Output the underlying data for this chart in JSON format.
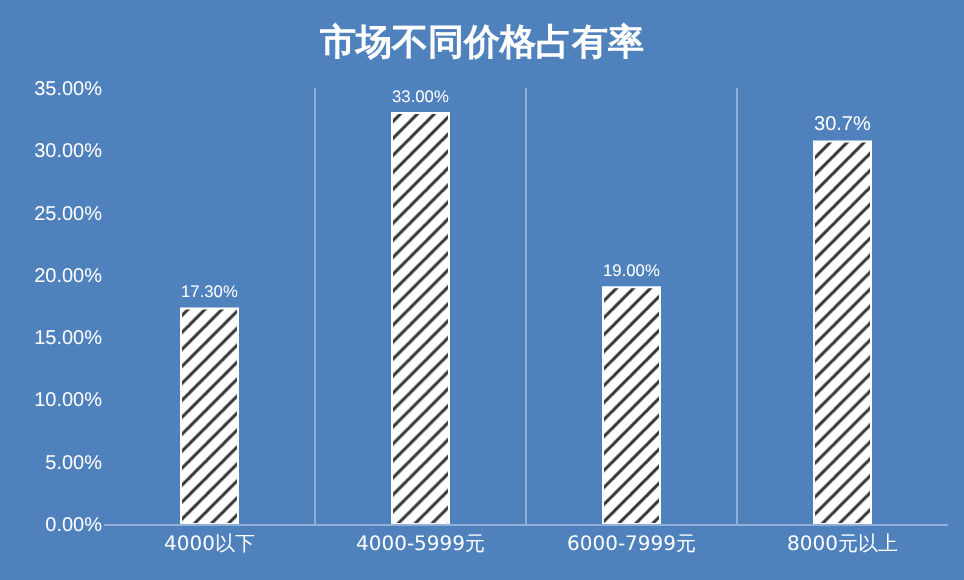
{
  "chart_data": {
    "type": "bar",
    "title": "市场不同价格占有率",
    "categories": [
      "4000以下",
      "4000-5999元",
      "6000-7999元",
      "8000元以上"
    ],
    "values": [
      17.3,
      33,
      19,
      30.7
    ],
    "value_labels": [
      "17.30%",
      "33.00%",
      "19.00%",
      "30.7%"
    ],
    "color": "#ffffff",
    "ylim": [
      0,
      35
    ],
    "yticks": [
      {
        "value": 0,
        "label": "0.00%"
      },
      {
        "value": 5,
        "label": "5.00%"
      },
      {
        "value": 10,
        "label": "10.00%"
      },
      {
        "value": 15,
        "label": "15.00%"
      },
      {
        "value": 20,
        "label": "20.00%"
      },
      {
        "value": 25,
        "label": "25.00%"
      },
      {
        "value": 30,
        "label": "30.00%"
      },
      {
        "value": 35,
        "label": "35.00%"
      }
    ],
    "grid": "x",
    "legend": false
  }
}
